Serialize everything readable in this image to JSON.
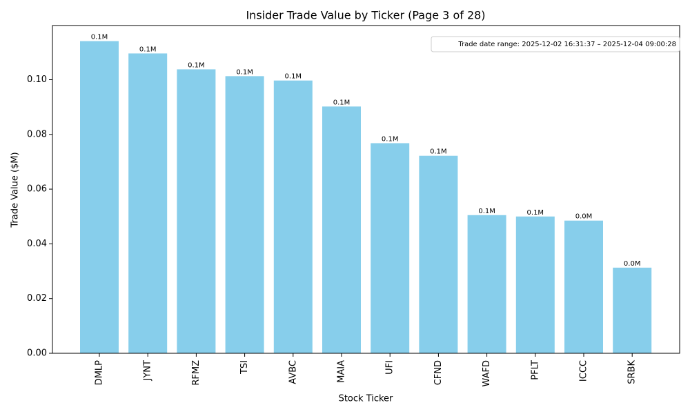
{
  "chart_data": {
    "type": "bar",
    "title": "Insider Trade Value by Ticker (Page 3 of 28)",
    "x_label": "Stock Ticker",
    "y_label": "Trade Value ($M)",
    "annotation": "Trade date range: 2025-12-02 16:31:37 – 2025-12-04 09:00:28",
    "categories": [
      "DMLP",
      "JYNT",
      "RFMZ",
      "TSI",
      "AVBC",
      "MAIA",
      "UFI",
      "CFND",
      "WAFD",
      "PFLT",
      "ICCC",
      "SRBK"
    ],
    "values": [
      0.1141,
      0.1096,
      0.1038,
      0.1013,
      0.0997,
      0.0902,
      0.0768,
      0.0722,
      0.0505,
      0.05,
      0.0485,
      0.0313
    ],
    "value_labels": [
      "0.1M",
      "0.1M",
      "0.1M",
      "0.1M",
      "0.1M",
      "0.1M",
      "0.1M",
      "0.1M",
      "0.1M",
      "0.1M",
      "0.0M",
      "0.0M"
    ],
    "color": "#87ceeb",
    "ylim": [
      0,
      0.1198
    ],
    "yticks": [
      {
        "value": 0,
        "label": "0.00"
      },
      {
        "value": 0.02,
        "label": "0.02"
      },
      {
        "value": 0.04,
        "label": "0.04"
      },
      {
        "value": 0.06,
        "label": "0.06"
      },
      {
        "value": 0.08,
        "label": "0.08"
      },
      {
        "value": 0.1,
        "label": "0.10"
      }
    ],
    "grid": false
  }
}
